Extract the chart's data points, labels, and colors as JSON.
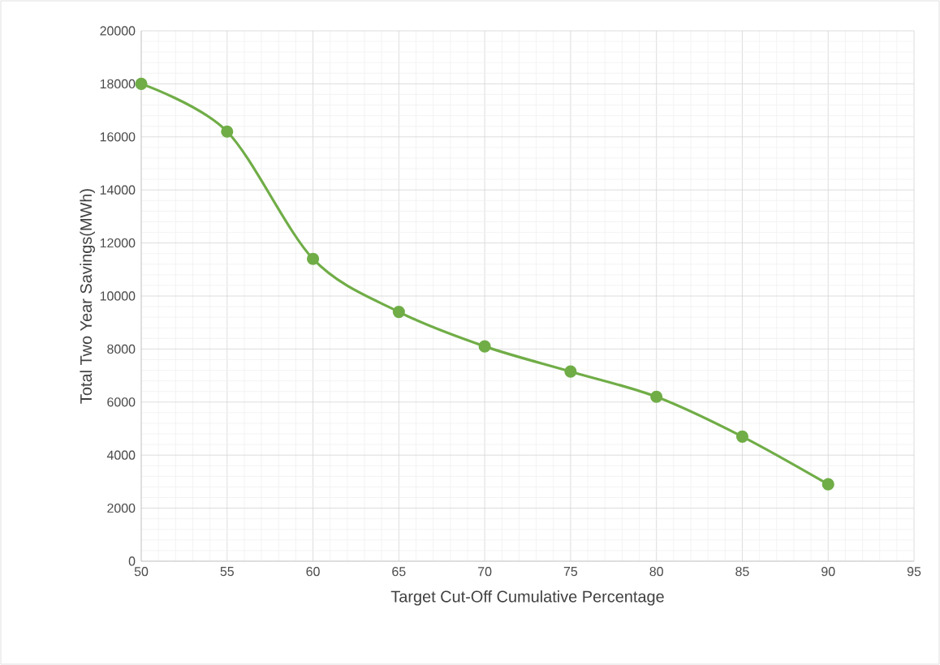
{
  "chart_data": {
    "type": "line",
    "xlabel": "Target Cut-Off Cumulative Percentage",
    "ylabel": "Total Two Year Savings(MWh)",
    "x": [
      50,
      55,
      60,
      65,
      70,
      75,
      80,
      85,
      90
    ],
    "series": [
      {
        "color": "#70ad47",
        "values": [
          18000,
          16200,
          11400,
          9400,
          8100,
          7150,
          6200,
          4700,
          2900
        ]
      }
    ],
    "xlim": [
      50,
      95
    ],
    "ylim": [
      0,
      20000
    ],
    "xticks": [
      50,
      55,
      60,
      65,
      70,
      75,
      80,
      85,
      90,
      95
    ],
    "yticks": [
      0,
      2000,
      4000,
      6000,
      8000,
      10000,
      12000,
      14000,
      16000,
      18000,
      20000
    ],
    "grid": true,
    "marker": "circle",
    "line_style": "solid"
  }
}
